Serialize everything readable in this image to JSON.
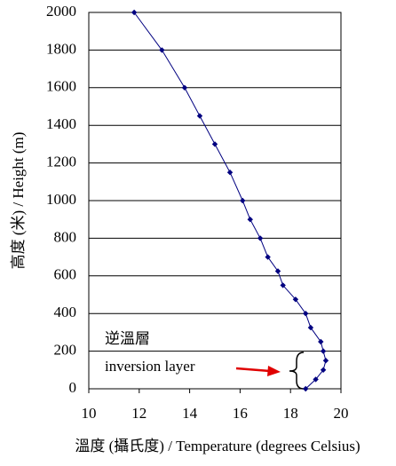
{
  "chart_data": {
    "type": "line",
    "xlabel": "溫度 (攝氏度) / Temperature (degrees Celsius)",
    "ylabel": "高度 (米) / Height (m)",
    "annotations": [
      "逆溫層",
      "inversion layer"
    ],
    "x": [
      11.8,
      12.9,
      13.8,
      14.4,
      15.0,
      15.6,
      16.1,
      16.4,
      16.8,
      17.1,
      17.5,
      17.7,
      18.2,
      18.6,
      18.8,
      19.2,
      19.3,
      19.4,
      19.3,
      19.0,
      18.6
    ],
    "values": [
      2000,
      1800,
      1600,
      1450,
      1300,
      1150,
      1000,
      900,
      800,
      700,
      625,
      550,
      475,
      400,
      325,
      250,
      200,
      150,
      100,
      50,
      0
    ],
    "color": "#000080",
    "xlim": [
      10,
      20
    ],
    "xticks": [
      10,
      12,
      14,
      16,
      18,
      20
    ],
    "ylim": [
      0,
      2000
    ],
    "yticks": [
      0,
      200,
      400,
      600,
      800,
      1000,
      1200,
      1400,
      1600,
      1800,
      2000
    ],
    "grid": true
  }
}
